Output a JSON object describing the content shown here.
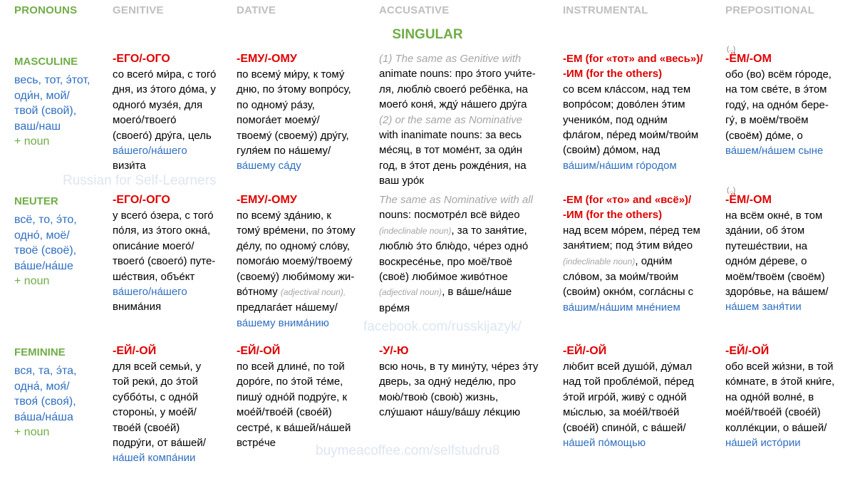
{
  "headers": {
    "pronouns": "PRONOUNS",
    "genitive": "GENITIVE",
    "dative": "DATIVE",
    "accusative": "ACCUSATIVE",
    "instrumental": "INSTRUMENTAL",
    "prepositional": "PREPOSITIONAL"
  },
  "singular": "SINGULAR",
  "watermarks": {
    "russian": "Russian for Self-Learners",
    "facebook": "facebook.com/russkijazyk/",
    "coffee": "buymeacoffee.com/selfstudru8"
  },
  "stress_dots": "(..)",
  "colors": {
    "green": "#70ad47",
    "red": "#e00000",
    "blue": "#2f6fc0",
    "orange": "#e69500",
    "gray": "#a6a6a6"
  },
  "rows": {
    "masculine": {
      "label": "MASCULINE",
      "pron": {
        "p1": "весь, тот, э́тот,",
        "p2": "оди́н, мой/",
        "p3": "твой (свой),",
        "p4": "ваш/наш",
        "noun": "+ noun"
      },
      "gen": {
        "ending": "-ЕГО/-ОГО",
        "l1": "со всего́ ми́ра, с того́",
        "l2": "дня, из э́того до́ма, у",
        "l3": "одного́ музе́я, для",
        "l4": "моего́/твоего́",
        "l5": "(своего́) дру́га, цель",
        "l6": "ва́шего/на́шего",
        "l7": "визи́та"
      },
      "dat": {
        "ending": "-ЕМУ/-ОМУ",
        "l1": "по всему́ ми́ру, к тому́",
        "l2": "дню, по э́тому вопро́су,",
        "l3": "по одному́ ра́зу,",
        "l4": "помога́ет моему́/",
        "l5": "твоему́ (своему́) дру́гу,",
        "l6": "гуля́ем по на́шему/",
        "l7": "ва́шему са́ду"
      },
      "acc": {
        "l1": "(1) The same as Genitive with",
        "l2": "animate nouns: про э́того учи́те-",
        "l3": "ля, люблю́ своего́ ребёнка, на",
        "l4": "моего́ коня́, жду́ на́шего дру́га",
        "l5": "(2) or the same as Nominative",
        "l6": "with inanimate nouns: за весь",
        "l7": "ме́сяц, в тот моме́нт, за оди́н",
        "l8": "год, в э́тот день рожде́ния, на",
        "l9": "ваш уро́к"
      },
      "ins": {
        "e1": "-ЕМ (for «тот» and «весь»)/",
        "e2": "-ИМ (for the others)",
        "l1": "со всем кла́ссом, над тем",
        "l2": "вопро́сом; дово́лен э́тим",
        "l3": "ученико́м, под одни́м",
        "l4": "фла́гом, пе́ред мои́м/твои́м",
        "l5": "(свои́м) до́мом, над",
        "l6": "ва́шим/на́шим го́родом"
      },
      "pre": {
        "ending": "-ЁМ/-ОМ",
        "l1": "обо (во) всём го́роде,",
        "l2": "на том све́те, в э́том",
        "l3": "году́, на одно́м бере-",
        "l4": "гу́, в моём/твоём",
        "l5": "(своём) до́ме, о",
        "l6": "ва́шем/на́шем сыне"
      }
    },
    "neuter": {
      "label": "NEUTER",
      "pron": {
        "p1": "всё, то, э́то,",
        "p2": "одно́, моё/",
        "p3": "твоё (своё),",
        "p4": "ва́ше/на́ше",
        "noun": "+ noun"
      },
      "gen": {
        "ending": "-ЕГО/-ОГО",
        "l1": "у всего́ о́зера, с того́",
        "l2": "по́ля, из э́того окна́,",
        "l3": "описа́ние моего́/",
        "l4": "твоего́ (своего́) путе-",
        "l5": "ше́ствия, объе́кт",
        "l6": "ва́шего/на́шего",
        "l7": "внима́ния"
      },
      "dat": {
        "ending": "-ЕМУ/-ОМУ",
        "l1": "по всему́ зда́нию, к",
        "l2": "тому́ вре́мени, по э́тому",
        "l3": "де́лу, по одному́ сло́ву,",
        "l4": "помога́ю моему́/твоему́",
        "l5": "(своему́) люби́мому жи-",
        "l6a": "во́тному ",
        "l6b": "(adjectival noun),",
        "l7": "предлага́ет на́шему/",
        "l8": "ва́шему внима́нию"
      },
      "acc": {
        "l1": "The same as Nominative with all",
        "l2": "nouns: посмотре́л всё ви́део",
        "l3a": "(indeclinable noun)",
        "l3b": ", за то заня́тие,",
        "l4": "люблю́ э́то блю́до, че́рез одно́",
        "l5": "воскресе́нье, про моё/твоё",
        "l6": "(своё) люби́мое живо́тное",
        "l7a": "(adjectival noun)",
        "l7b": ", в ва́ше/на́ше",
        "l8": "вре́мя"
      },
      "ins": {
        "e1": "-ЕМ (for «то» and «всё»)/",
        "e2": "-ИМ (for the others)",
        "l1": "над всем мо́рем, пе́ред тем",
        "l2": "заня́тием; под э́тим ви́део",
        "l3a": "(indeclinable noun)",
        "l3b": ", одни́м",
        "l4": "сло́вом, за мои́м/твои́м",
        "l5": "(свои́м) окно́м, согла́сны с",
        "l6": "ва́шим/на́шим мне́нием"
      },
      "pre": {
        "ending": "-ЁМ/-ОМ",
        "l1": "на всём окне́, в том",
        "l2": "зда́нии, об э́том",
        "l3": "путеше́ствии, на",
        "l4": "одно́м де́реве, о",
        "l5": "моём/твоём (своём)",
        "l6": "здоро́вье, на ва́шем/",
        "l7": "на́шем заня́тии"
      }
    },
    "feminine": {
      "label": "FEMININE",
      "pron": {
        "p1": "вся, та, э́та,",
        "p2": "одна́, моя́/",
        "p3": "твоя́ (своя́),",
        "p4": "ва́ша/на́ша",
        "noun": "+ noun"
      },
      "gen": {
        "ending": "-ЕЙ/-ОЙ",
        "l1": "для всей семьи́, у",
        "l2": "той реки́, до э́той",
        "l3": "суббо́ты, с одно́й",
        "l4": "стороны́, у мое́й/",
        "l5": "твое́й (свое́й)",
        "l6": "подру́ги, от ва́шей/",
        "l7": "на́шей компа́нии"
      },
      "dat": {
        "ending": "-ЕЙ/-ОЙ",
        "l1": "по всей длине́, по той",
        "l2": "доро́ге, по э́той те́ме,",
        "l3": "пишу́ одно́й подру́ге, к",
        "l4": "мое́й/твое́й (свое́й)",
        "l5": "сестре́, к ва́шей/на́шей",
        "l6": "встре́че"
      },
      "acc": {
        "ending": "-У/-Ю",
        "l1": "всю ночь, в ту мину́ту, че́рез э́ту",
        "l2": "дверь, за одну́ неде́лю, про",
        "l3": "мою́/твою́ (свою́) жизнь,",
        "l4": "слу́шают на́шу/ва́шу ле́кцию"
      },
      "ins": {
        "ending": "-ЕЙ/-ОЙ",
        "l1": "лю́бит всей душо́й, ду́мал",
        "l2": "над той пробле́мой, пе́ред",
        "l3": "э́той игро́й, живу́ с одно́й",
        "l4": "мы́слью, за мое́й/твое́й",
        "l5": "(свое́й) спино́й, с ва́шей/",
        "l6": "на́шей  по́мощью"
      },
      "pre": {
        "ending": "-ЕЙ/-ОЙ",
        "l1": "обо всей жи́зни, в той",
        "l2": "ко́мнате, в э́той кни́ге,",
        "l3": "на одно́й волне́, в",
        "l4": "мое́й/твое́й (свое́й)",
        "l5": "колле́кции, о ва́шей/",
        "l6": "на́шей исто́рии"
      }
    }
  }
}
